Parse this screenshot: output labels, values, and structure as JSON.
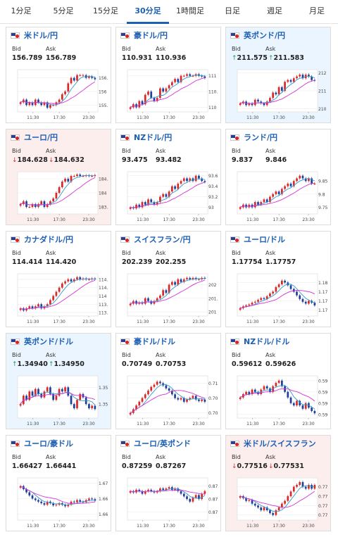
{
  "tabs": [
    {
      "label": "1分足",
      "active": false
    },
    {
      "label": "5分足",
      "active": false
    },
    {
      "label": "15分足",
      "active": false
    },
    {
      "label": "30分足",
      "active": true
    },
    {
      "label": "1時間足",
      "active": false
    },
    {
      "label": "日足",
      "active": false
    },
    {
      "label": "週足",
      "active": false
    },
    {
      "label": "月足",
      "active": false
    }
  ],
  "labels": {
    "bid": "Bid",
    "ask": "Ask"
  },
  "colors": {
    "accent": "#1d5fb3",
    "up_candle": "#d82828",
    "down_candle": "#1f3f9a",
    "ma_fast": "#3399cc",
    "ma_slow": "#d333d3",
    "up_card": "#eaf5ff",
    "down_card": "#fdeeee"
  },
  "cards": [
    {
      "pair": "米ドル/円",
      "flag": "us-flag-icon",
      "bid": "156.789",
      "ask": "156.789",
      "trend": "",
      "trend_symbol": "",
      "chart_data": {
        "type": "candlestick",
        "xticks": [
          "11:30",
          "17:30",
          "23:30"
        ],
        "yticks": [
          "156.5",
          "156",
          "155.5"
        ],
        "ylim": [
          155.3,
          156.75
        ],
        "close": [
          155.6,
          155.7,
          155.5,
          155.6,
          155.5,
          155.7,
          155.6,
          155.5,
          155.6,
          155.4,
          155.5,
          155.5,
          155.6,
          155.7,
          155.9,
          156.0,
          156.3,
          156.5,
          156.4,
          156.6,
          156.6,
          156.6,
          156.5,
          156.55,
          156.5,
          156.45
        ]
      }
    },
    {
      "pair": "豪ドル/円",
      "flag": "au-flag-icon",
      "bid": "110.931",
      "ask": "110.936",
      "trend": "",
      "trend_symbol": "",
      "chart_data": {
        "type": "candlestick",
        "xticks": [
          "11:30",
          "17:30",
          "23:30"
        ],
        "yticks": [
          "111",
          "110.5",
          "110"
        ],
        "ylim": [
          109.9,
          111.15
        ],
        "close": [
          110.0,
          110.1,
          110.0,
          110.2,
          110.1,
          110.4,
          110.5,
          110.3,
          110.2,
          110.3,
          110.6,
          110.5,
          110.6,
          110.7,
          110.8,
          110.9,
          110.8,
          111.0,
          111.0,
          111.05,
          111.0,
          111.0,
          111.05,
          111.0,
          110.98,
          110.93
        ]
      }
    },
    {
      "pair": "英ポンド/円",
      "flag": "gb-flag-icon",
      "bid": "211.575",
      "ask": "211.583",
      "trend": "up",
      "trend_symbol": "↑",
      "chart_data": {
        "type": "candlestick",
        "xticks": [
          "11:30",
          "17:30",
          "23:30"
        ],
        "yticks": [
          "212",
          "211",
          "210"
        ],
        "ylim": [
          209.9,
          212.1
        ],
        "close": [
          210.3,
          210.4,
          210.2,
          210.3,
          210.2,
          210.5,
          210.4,
          210.3,
          210.2,
          210.4,
          210.6,
          210.9,
          210.8,
          211.2,
          211.0,
          211.5,
          211.6,
          211.5,
          211.7,
          211.8,
          211.9,
          211.7,
          211.9,
          211.8,
          211.6,
          211.58
        ]
      }
    },
    {
      "pair": "ユーロ/円",
      "flag": "eu-flag-icon",
      "bid": "184.628",
      "ask": "184.632",
      "trend": "down",
      "trend_symbol": "↓",
      "chart_data": {
        "type": "candlestick",
        "xticks": [
          "11:30",
          "17:30",
          "23:30"
        ],
        "yticks": [
          "184.5",
          "184",
          "183.5"
        ],
        "ylim": [
          183.3,
          184.7
        ],
        "close": [
          183.6,
          183.7,
          183.5,
          183.5,
          183.6,
          183.5,
          183.6,
          183.7,
          183.5,
          183.6,
          183.7,
          183.8,
          184.0,
          184.2,
          184.4,
          184.5,
          184.4,
          184.6,
          184.6,
          184.65,
          184.6,
          184.6,
          184.62,
          184.6,
          184.6,
          184.63
        ]
      }
    },
    {
      "pair": "NZドル/円",
      "flag": "nz-flag-icon",
      "bid": "93.475",
      "ask": "93.482",
      "trend": "",
      "trend_symbol": "",
      "chart_data": {
        "type": "candlestick",
        "xticks": [
          "11:30",
          "17:30",
          "23:30"
        ],
        "yticks": [
          "93.6",
          "93.4",
          "93.2",
          "93"
        ],
        "ylim": [
          92.9,
          93.65
        ],
        "close": [
          93.0,
          92.98,
          93.05,
          93.0,
          93.1,
          93.05,
          93.15,
          93.1,
          93.05,
          93.1,
          93.2,
          93.25,
          93.2,
          93.3,
          93.4,
          93.35,
          93.45,
          93.5,
          93.55,
          93.5,
          93.55,
          93.5,
          93.6,
          93.55,
          93.5,
          93.48
        ]
      }
    },
    {
      "pair": "ランド/円",
      "flag": "za-flag-icon",
      "bid": "9.837",
      "ask": "9.846",
      "trend": "",
      "trend_symbol": "",
      "chart_data": {
        "type": "candlestick",
        "xticks": [
          "11:30",
          "17:30",
          "23:30"
        ],
        "yticks": [
          "9.85",
          "9.8",
          "9.75"
        ],
        "ylim": [
          9.73,
          9.88
        ],
        "close": [
          9.75,
          9.76,
          9.75,
          9.76,
          9.75,
          9.77,
          9.76,
          9.77,
          9.78,
          9.77,
          9.79,
          9.8,
          9.81,
          9.8,
          9.82,
          9.83,
          9.84,
          9.83,
          9.85,
          9.86,
          9.87,
          9.86,
          9.85,
          9.86,
          9.84,
          9.84
        ]
      }
    },
    {
      "pair": "カナダドル/円",
      "flag": "ca-flag-icon",
      "bid": "114.414",
      "ask": "114.420",
      "trend": "",
      "trend_symbol": "",
      "chart_data": {
        "type": "candlestick",
        "xticks": [
          "11:30",
          "17:30",
          "23:30"
        ],
        "yticks": [
          "114.4",
          "114.2",
          "114",
          "113.8",
          "113.6"
        ],
        "ylim": [
          113.55,
          114.5
        ],
        "close": [
          113.7,
          113.65,
          113.7,
          113.75,
          113.7,
          113.75,
          113.8,
          113.7,
          113.75,
          113.8,
          113.9,
          114.0,
          114.1,
          114.2,
          114.3,
          114.35,
          114.4,
          114.35,
          114.4,
          114.45,
          114.4,
          114.42,
          114.4,
          114.4,
          114.42,
          114.41
        ]
      }
    },
    {
      "pair": "スイスフラン/円",
      "flag": "ch-flag-icon",
      "bid": "202.239",
      "ask": "202.255",
      "trend": "",
      "trend_symbol": "",
      "chart_data": {
        "type": "candlestick",
        "xticks": [
          "11:30",
          "17:30",
          "23:30"
        ],
        "yticks": [
          "202",
          "201.5",
          "201"
        ],
        "ylim": [
          200.9,
          202.35
        ],
        "close": [
          201.3,
          201.4,
          201.3,
          201.35,
          201.3,
          201.5,
          201.4,
          201.3,
          201.4,
          201.5,
          201.6,
          201.8,
          201.7,
          202.0,
          202.1,
          202.0,
          202.2,
          202.1,
          202.2,
          202.25,
          202.2,
          202.25,
          202.2,
          202.2,
          202.25,
          202.24
        ]
      }
    },
    {
      "pair": "ユーロ/ドル",
      "flag": "eu-flag-icon",
      "bid": "1.17754",
      "ask": "1.17757",
      "trend": "",
      "trend_symbol": "",
      "chart_data": {
        "type": "candlestick",
        "xticks": [
          "11:30",
          "17:30",
          "23:30"
        ],
        "yticks": [
          "1.18",
          "1.179",
          "1.178",
          "1.177"
        ],
        "ylim": [
          1.1765,
          1.1808
        ],
        "close": [
          1.1772,
          1.1774,
          1.1775,
          1.1776,
          1.1778,
          1.1779,
          1.1781,
          1.1783,
          1.1782,
          1.1785,
          1.1788,
          1.179,
          1.1795,
          1.1798,
          1.1802,
          1.18,
          1.1797,
          1.1793,
          1.179,
          1.1786,
          1.1782,
          1.1779,
          1.1777,
          1.178,
          1.1778,
          1.1775
        ]
      }
    },
    {
      "pair": "英ポンド/ドル",
      "flag": "gb-flag-icon",
      "bid": "1.34940",
      "ask": "1.34950",
      "trend": "up",
      "trend_symbol": "↑",
      "chart_data": {
        "type": "candlestick",
        "xticks": [
          "11:30",
          "17:30",
          "23:30"
        ],
        "yticks": [
          "1.352",
          "1.35"
        ],
        "ylim": [
          1.3485,
          1.3532
        ],
        "close": [
          1.35,
          1.351,
          1.3505,
          1.3515,
          1.351,
          1.3518,
          1.3512,
          1.3508,
          1.3515,
          1.352,
          1.3512,
          1.3505,
          1.351,
          1.3518,
          1.3515,
          1.352,
          1.351,
          1.35,
          1.3495,
          1.3505,
          1.3512,
          1.3508,
          1.35,
          1.3495,
          1.3498,
          1.3494
        ]
      }
    },
    {
      "pair": "豪ドル/ドル",
      "flag": "au-flag-icon",
      "bid": "0.70749",
      "ask": "0.70753",
      "trend": "",
      "trend_symbol": "",
      "chart_data": {
        "type": "candlestick",
        "xticks": [
          "11:30",
          "17:30",
          "23:30"
        ],
        "yticks": [
          "0.71",
          "0.708",
          "0.706"
        ],
        "ylim": [
          0.7055,
          0.7108
        ],
        "close": [
          0.706,
          0.7065,
          0.707,
          0.7075,
          0.708,
          0.7085,
          0.709,
          0.7095,
          0.7098,
          0.7102,
          0.71,
          0.7097,
          0.7093,
          0.709,
          0.7085,
          0.708,
          0.7078,
          0.708,
          0.7075,
          0.7078,
          0.708,
          0.7083,
          0.7078,
          0.7076,
          0.7078,
          0.7075
        ]
      }
    },
    {
      "pair": "NZドル/ドル",
      "flag": "nz-flag-icon",
      "bid": "0.59612",
      "ask": "0.59626",
      "trend": "",
      "trend_symbol": "",
      "chart_data": {
        "type": "candlestick",
        "xticks": [
          "11:30",
          "17:30",
          "23:30"
        ],
        "yticks": [
          "0.599",
          "0.598",
          "0.597",
          "0.596"
        ],
        "ylim": [
          0.5958,
          0.5993
        ],
        "close": [
          0.5975,
          0.5978,
          0.598,
          0.5978,
          0.5982,
          0.598,
          0.5978,
          0.5982,
          0.5985,
          0.5983,
          0.598,
          0.5985,
          0.5988,
          0.599,
          0.5985,
          0.598,
          0.5975,
          0.597,
          0.5968,
          0.5972,
          0.5968,
          0.5965,
          0.597,
          0.5966,
          0.5963,
          0.5961
        ]
      }
    },
    {
      "pair": "ユーロ/豪ドル",
      "flag": "eu-flag-icon",
      "bid": "1.66427",
      "ask": "1.66441",
      "trend": "",
      "trend_symbol": "",
      "chart_data": {
        "type": "candlestick",
        "xticks": [
          "11:30",
          "17:30",
          "23:30"
        ],
        "yticks": [
          "1.67",
          "1.665",
          "1.66"
        ],
        "ylim": [
          1.6585,
          1.6712
        ],
        "close": [
          1.669,
          1.668,
          1.667,
          1.666,
          1.665,
          1.6645,
          1.664,
          1.6635,
          1.663,
          1.664,
          1.6635,
          1.6628,
          1.663,
          1.6635,
          1.663,
          1.6625,
          1.663,
          1.664,
          1.6638,
          1.6645,
          1.664,
          1.6638,
          1.6645,
          1.665,
          1.6648,
          1.6643
        ]
      }
    },
    {
      "pair": "ユーロ/英ポンド",
      "flag": "eu-flag-icon",
      "bid": "0.87259",
      "ask": "0.87267",
      "trend": "",
      "trend_symbol": "",
      "chart_data": {
        "type": "candlestick",
        "xticks": [
          "11:30",
          "17:30",
          "23:30"
        ],
        "yticks": [
          "0.873",
          "0.872",
          "0.871"
        ],
        "ylim": [
          0.8705,
          0.8735
        ],
        "close": [
          0.8726,
          0.8725,
          0.8727,
          0.8726,
          0.8724,
          0.8726,
          0.8727,
          0.8726,
          0.8725,
          0.8726,
          0.8728,
          0.8727,
          0.8728,
          0.8729,
          0.8727,
          0.8728,
          0.8726,
          0.8724,
          0.8722,
          0.872,
          0.8718,
          0.8721,
          0.8723,
          0.872,
          0.8724,
          0.8726
        ]
      }
    },
    {
      "pair": "米ドル/スイスフラン",
      "flag": "us-flag-icon",
      "bid": "0.77516",
      "ask": "0.77531",
      "trend": "down",
      "trend_symbol": "↓",
      "chart_data": {
        "type": "candlestick",
        "xticks": [
          "11:30",
          "17:30",
          "23:30"
        ],
        "yticks": [
          "0.775",
          "0.774",
          "0.773",
          "0.772"
        ],
        "ylim": [
          0.7716,
          0.7758
        ],
        "close": [
          0.774,
          0.7738,
          0.7735,
          0.7736,
          0.7732,
          0.773,
          0.7728,
          0.7725,
          0.7728,
          0.7725,
          0.7722,
          0.772,
          0.7725,
          0.7728,
          0.7732,
          0.7735,
          0.774,
          0.7745,
          0.775,
          0.7752,
          0.7755,
          0.775,
          0.7748,
          0.7752,
          0.7748,
          0.7752
        ]
      }
    }
  ]
}
